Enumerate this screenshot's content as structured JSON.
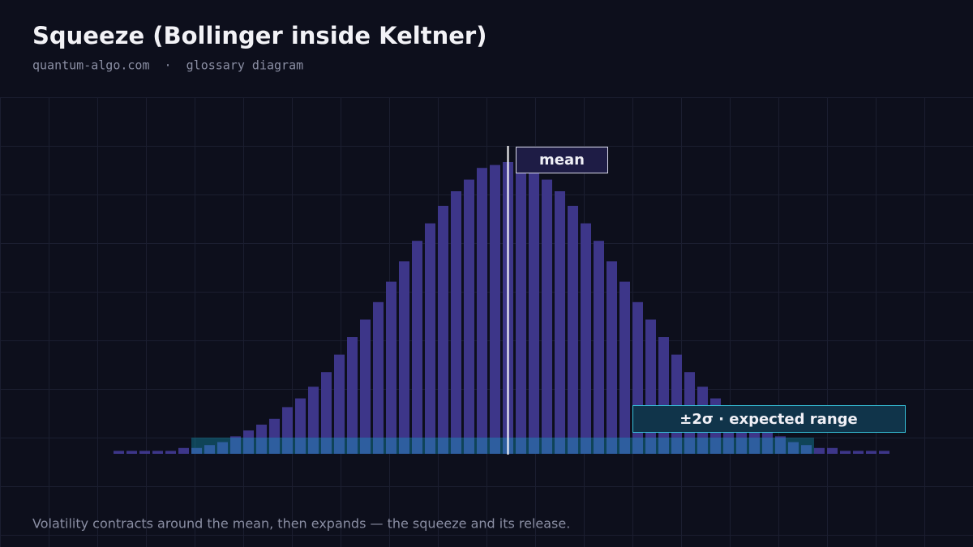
{
  "chart_data": {
    "type": "bar",
    "title": "Squeeze (Bollinger inside Keltner)",
    "subtitle": "quantum-algo.com  ·  glossary diagram",
    "values": [
      1,
      1,
      1,
      1,
      1,
      2,
      2,
      3,
      4,
      6,
      8,
      10,
      12,
      16,
      19,
      23,
      28,
      34,
      40,
      46,
      52,
      59,
      66,
      73,
      79,
      85,
      90,
      94,
      98,
      99,
      100,
      99,
      98,
      94,
      90,
      85,
      79,
      73,
      66,
      59,
      52,
      46,
      40,
      34,
      28,
      23,
      19,
      16,
      12,
      10,
      8,
      6,
      4,
      3,
      2,
      2,
      1,
      1,
      1,
      1
    ],
    "color": "#3d3689",
    "ylim": [
      0,
      100
    ],
    "mean_label": "mean",
    "band_label": "±2σ · expected range",
    "caption": "Volatility contracts around the mean, then expands — the squeeze and its release."
  }
}
